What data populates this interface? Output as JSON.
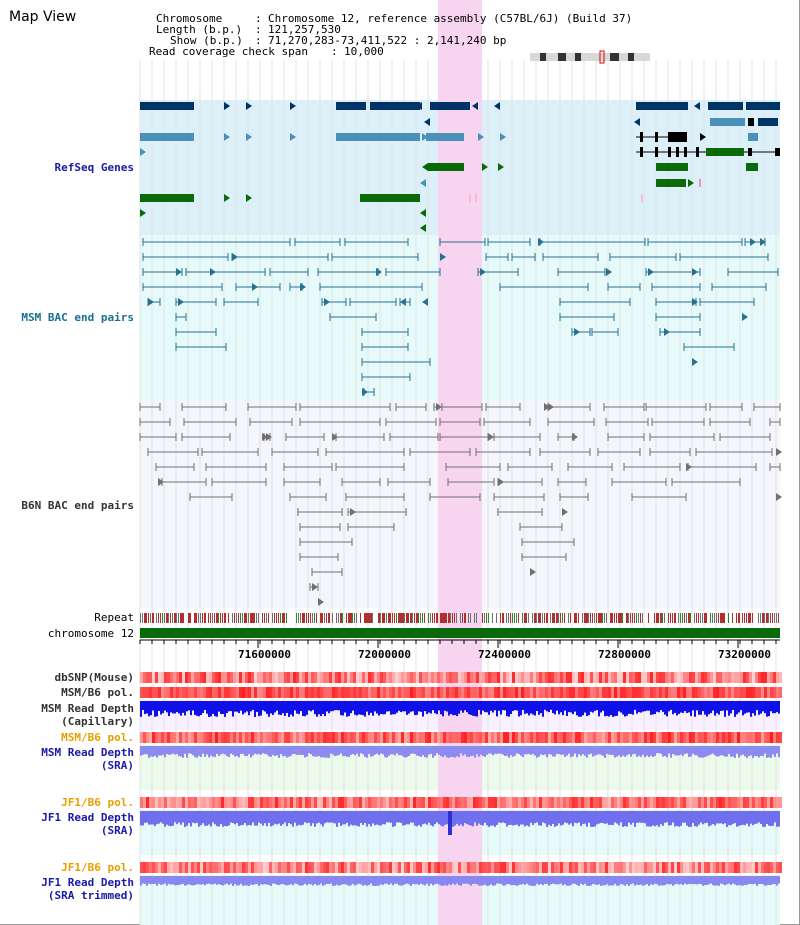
{
  "title": "Map View",
  "info": {
    "chromosome_label": "Chromosome",
    "chromosome_value": "Chromosome 12, reference assembly (C57BL/6J) (Build 37)",
    "length_label": "Length (b.p.)",
    "length_value": "121,257,530",
    "show_label": "Show (b.p.)",
    "show_value": "71,270,283-73,411,522 : 2,141,240 bp",
    "span_label": "Read coverage check span",
    "span_value": "10,000"
  },
  "tracks": {
    "refseq": "RefSeq Genes",
    "msm_bac": "MSM BAC end pairs",
    "b6n_bac": "B6N BAC end pairs",
    "repeat": "Repeat",
    "chromosome": "chromosome 12",
    "dbsnp": "dbSNP(Mouse)",
    "msm_b6_pol": "MSM/B6 pol.",
    "msm_read_depth_cap_1": "MSM Read Depth",
    "msm_read_depth_cap_2": "(Capillary)",
    "msm_b6_pol_sra": "MSM/B6 pol.",
    "msm_read_depth_sra_1": "MSM Read Depth",
    "msm_read_depth_sra_2": "(SRA)",
    "jf1_b6_pol": "JF1/B6 pol.",
    "jf1_read_depth_1": "JF1 Read Depth",
    "jf1_read_depth_2": "(SRA)",
    "jf1_b6_pol_trim": "JF1/B6 pol.",
    "jf1_read_depth_trim_1": "JF1 Read Depth",
    "jf1_read_depth_trim_2": "(SRA trimmed)"
  },
  "axis_ticks": [
    "71600000",
    "72000000",
    "72400000",
    "72800000",
    "73200000"
  ],
  "colors": {
    "refseq_bg": "#dcf0fa",
    "msm_bg": "#e6fafa",
    "b6n_bg": "#f4f6fc",
    "highlight": "#f7d6f0",
    "dark_gene": "#003366",
    "light_gene": "#4a90b8",
    "green_gene": "#0a6a0a",
    "msm_line": "#2a7090",
    "b6n_line": "#707070",
    "chrom_bar": "#0a6a0a"
  }
}
